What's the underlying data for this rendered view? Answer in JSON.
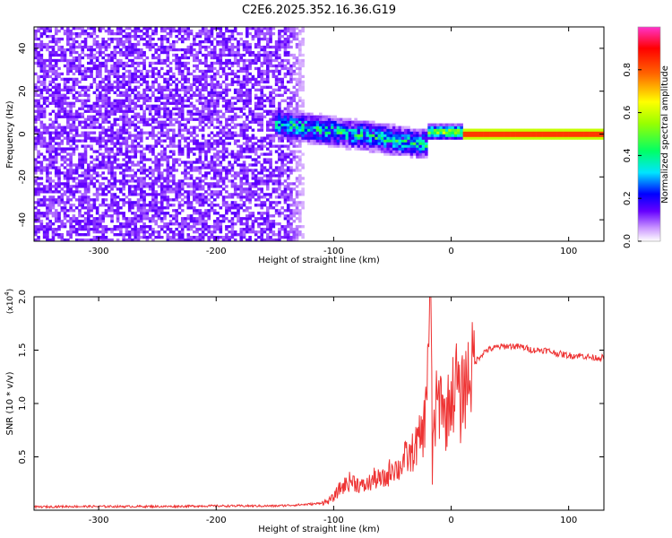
{
  "title": "C2E6.2025.352.16.36.G19",
  "chart_data": [
    {
      "type": "heatmap",
      "xlabel": "Height of straight line (km)",
      "ylabel": "Frequency (Hz)",
      "xlim": [
        -355,
        130
      ],
      "ylim": [
        -50,
        50
      ],
      "x_ticks": [
        -300,
        -200,
        -100,
        0,
        100
      ],
      "y_ticks": [
        -40,
        -20,
        0,
        20,
        40
      ],
      "colorbar": {
        "label": "Normalized spectral amplitude",
        "range": [
          0,
          1
        ],
        "ticks": [
          0.0,
          0.2,
          0.4,
          0.6,
          0.8
        ],
        "colors": [
          "#ffffff",
          "#cc99ff",
          "#6600ff",
          "#0000ff",
          "#00e5ff",
          "#00ff66",
          "#99ff00",
          "#ffff00",
          "#ff6600",
          "#ff0000",
          "#ff33cc"
        ]
      },
      "regions": [
        {
          "x_range": [
            -355,
            -120
          ],
          "freq_range": [
            -50,
            50
          ],
          "amplitude": 0.12,
          "description": "noise"
        },
        {
          "x_range": [
            -150,
            -20
          ],
          "freq_center_start": 5,
          "freq_center_end": -5,
          "width_hz": 8,
          "amplitude": 0.35
        },
        {
          "x_range": [
            -20,
            10
          ],
          "freq_center": 1,
          "width_hz": 4,
          "amplitude": 0.6
        },
        {
          "x_range": [
            10,
            130
          ],
          "freq_center": 0,
          "width_hz": 2.5,
          "amplitude": 0.95
        }
      ]
    },
    {
      "type": "line",
      "xlabel": "Height of straight line (km)",
      "ylabel": "SNR (10 * v/v)",
      "y_multiplier": "(x10",
      "y_multiplier_exp": "4",
      "y_multiplier_close": ")",
      "xlim": [
        -355,
        130
      ],
      "ylim": [
        0,
        2.0
      ],
      "x_ticks": [
        -300,
        -200,
        -100,
        0,
        100
      ],
      "y_ticks": [
        0.5,
        1.0,
        1.5,
        2.0
      ],
      "line_color": "#ee3333",
      "series": [
        {
          "x": [
            -355,
            -330,
            -300,
            -270,
            -240,
            -210,
            -180,
            -150,
            -130,
            -115,
            -105,
            -100,
            -95,
            -90,
            -85,
            -80,
            -75,
            -70,
            -65,
            -60,
            -55,
            -50,
            -45,
            -40,
            -35,
            -30,
            -25,
            -22,
            -20,
            -18,
            -17,
            -16,
            -15,
            -14,
            -12,
            -10,
            -8,
            -5,
            -2,
            0,
            2,
            5,
            8,
            10,
            12,
            15,
            18,
            20,
            25,
            30,
            40,
            50,
            60,
            70,
            80,
            90,
            100,
            110,
            120,
            130
          ],
          "y": [
            0.03,
            0.035,
            0.035,
            0.035,
            0.035,
            0.04,
            0.04,
            0.04,
            0.05,
            0.06,
            0.08,
            0.12,
            0.2,
            0.24,
            0.28,
            0.25,
            0.22,
            0.25,
            0.3,
            0.28,
            0.3,
            0.42,
            0.38,
            0.48,
            0.5,
            0.6,
            0.7,
            0.85,
            1.5,
            1.9,
            1.7,
            0.3,
            0.9,
            0.75,
            1.05,
            0.95,
            1.15,
            0.8,
            1.0,
            1.08,
            1.1,
            1.25,
            0.9,
            1.2,
            1.15,
            1.3,
            1.32,
            1.38,
            1.45,
            1.5,
            1.53,
            1.54,
            1.53,
            1.5,
            1.5,
            1.47,
            1.45,
            1.45,
            1.43,
            1.43
          ]
        }
      ]
    }
  ]
}
